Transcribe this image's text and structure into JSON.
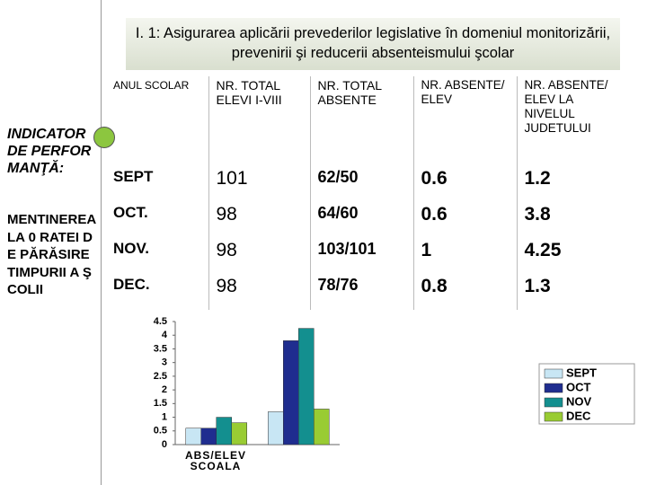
{
  "title": "I. 1: Asigurarea aplicării prevederilor legislative în domeniul monitorizării, prevenirii şi reducerii absenteismului şcolar",
  "left_panel": {
    "indicator": "INDICATOR DE PERFORMANŢĂ:",
    "description": "MENTINEREA LA 0 RATEI DE PĂRĂSIRE TIMPURII A ŞCOLII"
  },
  "table": {
    "header": [
      "ANUL SCOLAR",
      "NR. TOTAL ELEVI I-VIII",
      "NR. TOTAL ABSENTE",
      "NR. ABSENTE/ ELEV",
      "NR. ABSENTE/ ELEV LA NIVELUL JUDETULUI"
    ],
    "rows": [
      [
        "SEPT",
        "101",
        "62/50",
        "0.6",
        "1.2"
      ],
      [
        "OCT.",
        "98",
        "64/60",
        "0.6",
        "3.8"
      ],
      [
        "NOV.",
        "98",
        "103/101",
        "1",
        "4.25"
      ],
      [
        "DEC.",
        "98",
        "78/76",
        "0.8",
        "1.3"
      ]
    ]
  },
  "chart_data": {
    "type": "bar",
    "categories": [
      "ABS/ELEV SCOALA",
      null
    ],
    "series": [
      {
        "name": "SEPT",
        "color": "#c8e6f4",
        "values": [
          0.6,
          1.2
        ]
      },
      {
        "name": "OCT",
        "color": "#1f2d8f",
        "values": [
          0.6,
          3.8
        ]
      },
      {
        "name": "NOV",
        "color": "#138f8f",
        "values": [
          1,
          4.25
        ]
      },
      {
        "name": "DEC",
        "color": "#99cc33",
        "values": [
          0.8,
          1.3
        ]
      }
    ],
    "ylim": [
      0,
      4.5
    ],
    "yticks": [
      0,
      0.5,
      1,
      1.5,
      2,
      2.5,
      3,
      3.5,
      4,
      4.5
    ],
    "legend": "right"
  }
}
